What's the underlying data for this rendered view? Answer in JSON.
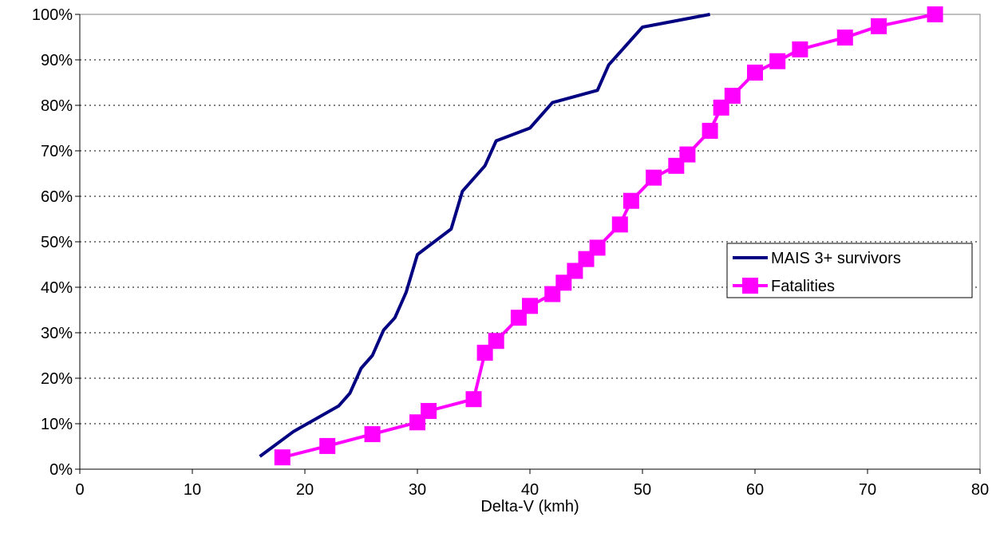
{
  "chart_data": {
    "type": "line",
    "title": "",
    "xlabel": "Delta-V (kmh)",
    "ylabel": "",
    "xlim": [
      0,
      80
    ],
    "ylim": [
      0,
      100
    ],
    "x_ticks": [
      0,
      10,
      20,
      30,
      40,
      50,
      60,
      70,
      80
    ],
    "x_tick_labels": [
      "0",
      "10",
      "20",
      "30",
      "40",
      "50",
      "60",
      "70",
      "80"
    ],
    "y_ticks": [
      0,
      10,
      20,
      30,
      40,
      50,
      60,
      70,
      80,
      90,
      100
    ],
    "y_tick_labels": [
      "0%",
      "10%",
      "20%",
      "30%",
      "40%",
      "50%",
      "60%",
      "70%",
      "80%",
      "90%",
      "100%"
    ],
    "grid": "horizontal dotted",
    "legend_position": "right",
    "series": [
      {
        "name": "MAIS 3+ survivors",
        "color": "#000080",
        "marker": "none",
        "points": [
          [
            16,
            2.8
          ],
          [
            19,
            8.3
          ],
          [
            23,
            13.9
          ],
          [
            24,
            16.7
          ],
          [
            25,
            22.2
          ],
          [
            26,
            25.0
          ],
          [
            27,
            30.6
          ],
          [
            28,
            33.3
          ],
          [
            29,
            38.9
          ],
          [
            30,
            47.2
          ],
          [
            33,
            52.8
          ],
          [
            34,
            61.1
          ],
          [
            36,
            66.7
          ],
          [
            37,
            72.2
          ],
          [
            40,
            75.0
          ],
          [
            42,
            80.6
          ],
          [
            46,
            83.3
          ],
          [
            47,
            88.9
          ],
          [
            50,
            97.2
          ],
          [
            56,
            100
          ]
        ]
      },
      {
        "name": "Fatalities",
        "color": "#FF00FF",
        "marker": "square",
        "points": [
          [
            18,
            2.6
          ],
          [
            22,
            5.1
          ],
          [
            26,
            7.7
          ],
          [
            30,
            10.3
          ],
          [
            31,
            12.8
          ],
          [
            35,
            15.4
          ],
          [
            36,
            25.6
          ],
          [
            37,
            28.2
          ],
          [
            39,
            33.3
          ],
          [
            40,
            35.9
          ],
          [
            42,
            38.5
          ],
          [
            43,
            41.0
          ],
          [
            44,
            43.6
          ],
          [
            45,
            46.2
          ],
          [
            46,
            48.7
          ],
          [
            48,
            53.8
          ],
          [
            49,
            59.0
          ],
          [
            51,
            64.1
          ],
          [
            53,
            66.7
          ],
          [
            54,
            69.2
          ],
          [
            56,
            74.4
          ],
          [
            57,
            79.5
          ],
          [
            58,
            82.1
          ],
          [
            60,
            87.2
          ],
          [
            62,
            89.7
          ],
          [
            64,
            92.3
          ],
          [
            68,
            94.9
          ],
          [
            71,
            97.4
          ],
          [
            76,
            100
          ]
        ]
      }
    ]
  }
}
